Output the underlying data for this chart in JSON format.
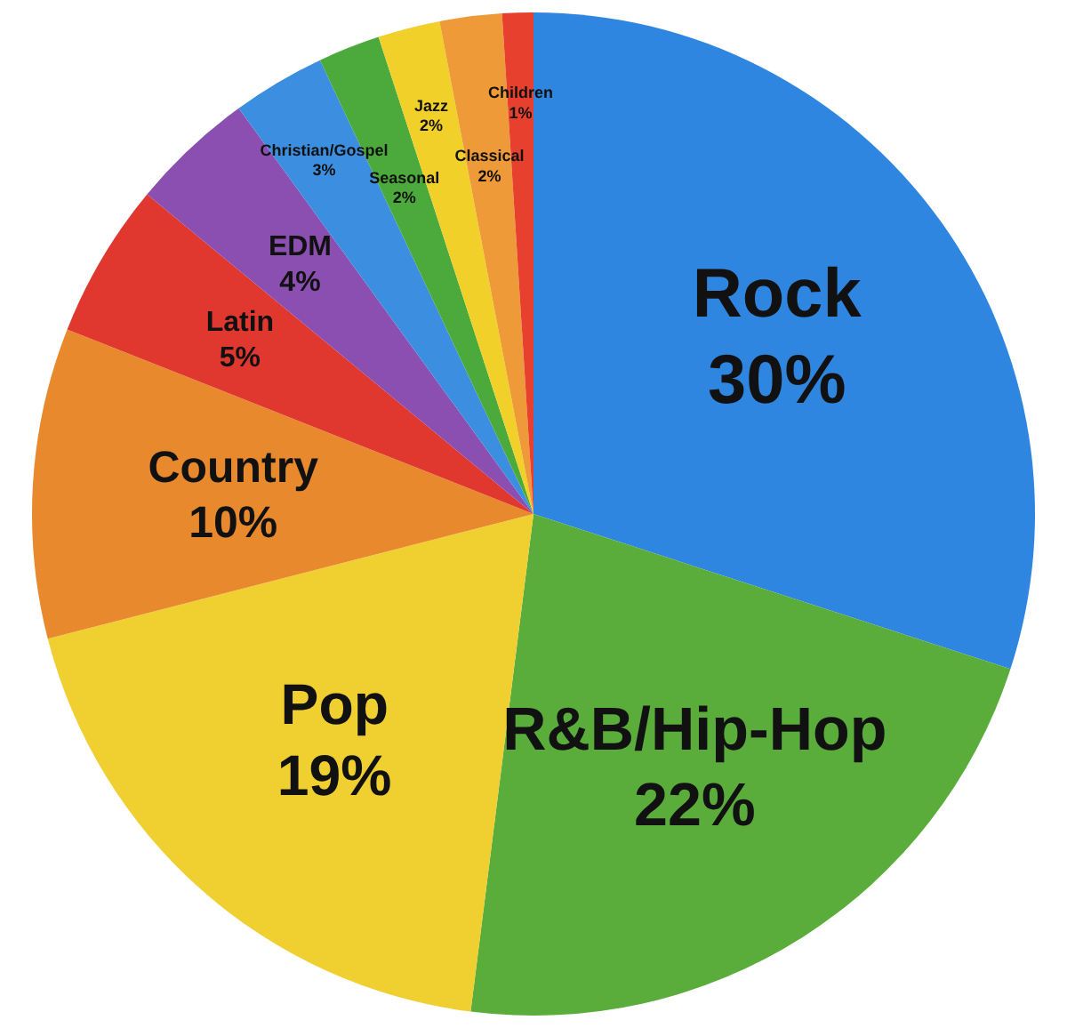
{
  "chart_data": {
    "type": "pie",
    "categories": [
      "Rock",
      "R&B/Hip-Hop",
      "Pop",
      "Country",
      "Latin",
      "EDM",
      "Christian/Gospel",
      "Seasonal",
      "Jazz",
      "Classical",
      "Children"
    ],
    "values": [
      30,
      22,
      19,
      10,
      5,
      4,
      3,
      2,
      2,
      2,
      1
    ],
    "value_labels": [
      "30%",
      "22%",
      "19%",
      "10%",
      "5%",
      "4%",
      "3%",
      "2%",
      "2%",
      "2%",
      "1%"
    ],
    "colors": [
      "#2f86e0",
      "#5aad3a",
      "#f0cf30",
      "#e8892e",
      "#e0372e",
      "#8a4fb0",
      "#3b8ee0",
      "#4caa3c",
      "#f2d02a",
      "#ee9a38",
      "#e8402e"
    ],
    "legend": false
  }
}
